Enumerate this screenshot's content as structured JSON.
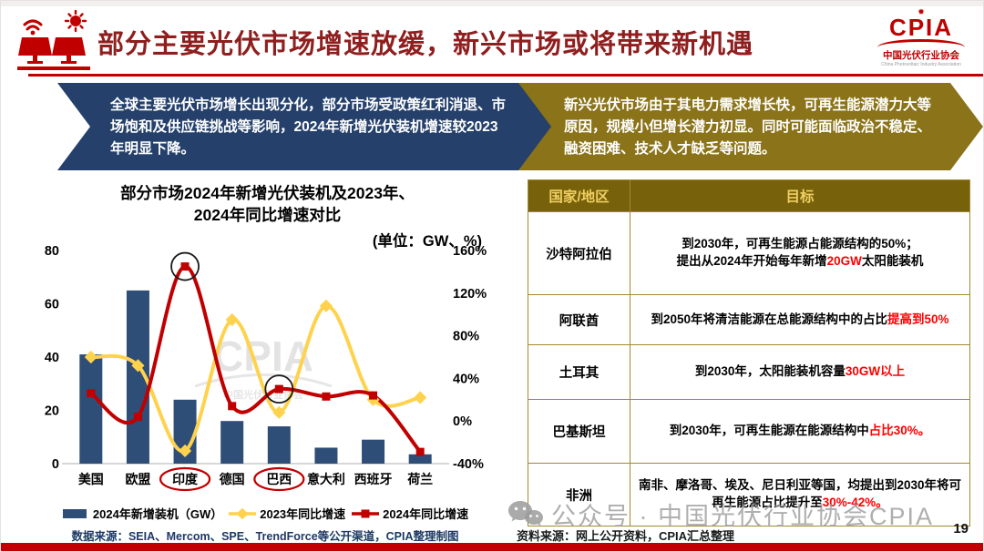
{
  "slide": {
    "title": "部分主要光伏市场增速放缓，新兴市场或将带来新机遇",
    "page_number": "19"
  },
  "logo": {
    "abbr": "CPIA",
    "sun": "✹",
    "org_cn": "中国光伏行业协会",
    "org_en": "China Photovoltaic Industry Association"
  },
  "callouts": {
    "left": "全球主要光伏市场增长出现分化，部分市场受政策红利消退、市场饱和及供应链挑战等影响，2024年新增光伏装机增速较2023年明显下降。",
    "right": "新兴光伏市场由于其电力需求增长快，可再生能源潜力大等原因，规模小但增长潜力初显。同时可能面临政治不稳定、融资困难、技术人才缺乏等问题。"
  },
  "chart": {
    "title_line1": "部分市场2024年新增光伏装机及2023年、",
    "title_line2": "2024年同比增速对比",
    "unit_label": "(单位：GW、%)",
    "source": "数据来源：SEIA、Mercom、SPE、TrendForce等公开渠道，CPIA整理制图",
    "watermark_main": "CPIA",
    "watermark_sub": "中国光伏行业协会"
  },
  "chart_data": {
    "type": "bar",
    "subtype": "bar+line combo, dual axis",
    "title": "部分市场2024年新增光伏装机及2023年、2024年同比增速对比",
    "categories": [
      "美国",
      "欧盟",
      "印度",
      "德国",
      "巴西",
      "意大利",
      "西班牙",
      "荷兰"
    ],
    "series": [
      {
        "name": "2024年新增装机（GW）",
        "type": "bar",
        "axis": "left",
        "color": "#2e4d77",
        "values": [
          41,
          65,
          24,
          16,
          14,
          6,
          9,
          3.5
        ]
      },
      {
        "name": "2023年同比增速",
        "type": "line",
        "marker": "diamond",
        "axis": "right",
        "color": "#ffd24d",
        "values": [
          60,
          52,
          -28,
          95,
          8,
          108,
          20,
          22
        ]
      },
      {
        "name": "2024年同比增速",
        "type": "line",
        "marker": "square",
        "axis": "right",
        "color": "#c00000",
        "values": [
          26,
          4,
          145,
          14,
          30,
          23,
          24,
          -29
        ]
      }
    ],
    "left_axis": {
      "ticks": [
        0,
        20,
        40,
        60,
        80
      ],
      "range": [
        0,
        80
      ],
      "unit": "GW"
    },
    "right_axis": {
      "ticks": [
        -40,
        0,
        40,
        80,
        120,
        160
      ],
      "range": [
        -40,
        160
      ],
      "unit": "%"
    },
    "grid": false,
    "legend_position": "bottom",
    "annotations": {
      "black_circle_category_indexes": [
        2,
        4
      ],
      "black_circle_series": "2024年同比增速",
      "red_ellipse_label_indexes": [
        2,
        4
      ]
    }
  },
  "table": {
    "headers": [
      "国家/地区",
      "目标"
    ],
    "rows": [
      {
        "country": "沙特阿拉伯",
        "target": [
          {
            "t": "到2030年，可再生能源占能源结构的50%；"
          },
          {
            "br": true
          },
          {
            "t": "提出从2024年开始每年新增"
          },
          {
            "t": "20GW",
            "red": true
          },
          {
            "t": "太阳能装机"
          }
        ]
      },
      {
        "country": "阿联酋",
        "target": [
          {
            "t": "到2050年将清洁能源在总能源结构中的占比"
          },
          {
            "t": "提高到50%",
            "red": true
          }
        ]
      },
      {
        "country": "土耳其",
        "target": [
          {
            "t": "到2030年，太阳能装机容量"
          },
          {
            "t": "30GW以上",
            "red": true
          }
        ]
      },
      {
        "country": "巴基斯坦",
        "target": [
          {
            "t": "到2030年，可再生能源在能源结构中"
          },
          {
            "t": "占比30%。",
            "red": true
          }
        ]
      },
      {
        "country": "非洲",
        "target": [
          {
            "t": "南非、摩洛哥、埃及、尼日利亚等国，均提出到2030年将可再生能源占比提升至"
          },
          {
            "t": "30%-42%。",
            "red": true
          }
        ]
      }
    ]
  },
  "footer": {
    "watermark": "公众号 · 中国光伏行业协会CPIA",
    "right_source": "资料来源：网上公开资料，CPIA汇总整理"
  }
}
